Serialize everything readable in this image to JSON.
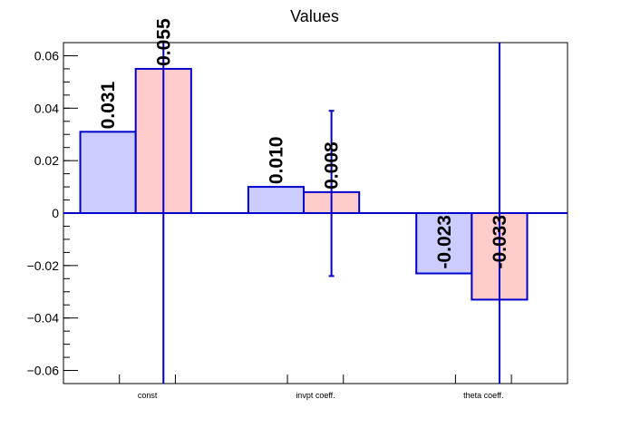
{
  "chart_data": {
    "type": "bar",
    "title": "Values",
    "categories": [
      "const",
      "invpt coeff.",
      "theta coeff."
    ],
    "ylim": [
      -0.065,
      0.065
    ],
    "yticks": [
      -0.06,
      -0.04,
      -0.02,
      0,
      0.02,
      0.04,
      0.06
    ],
    "ytick_labels": [
      "−0.06",
      "−0.04",
      "−0.02",
      "0",
      "0.02",
      "0.04",
      "0.06"
    ],
    "series": [
      {
        "values": [
          0.031,
          0.01,
          -0.023
        ],
        "labels": [
          "0.031",
          "0.010",
          "-0.023"
        ],
        "fill": "#ccccff",
        "stroke": "#0000cc",
        "errors": [
          null,
          null,
          null
        ]
      },
      {
        "values": [
          0.055,
          0.008,
          -0.033
        ],
        "labels": [
          "0.055",
          "0.008",
          "-0.033"
        ],
        "fill": "#ffcccc",
        "stroke": "#0000cc",
        "errors": [
          [
            -0.065,
            0.065
          ],
          [
            -0.024,
            0.039
          ],
          [
            -0.065,
            0.065
          ]
        ]
      }
    ],
    "grid": false,
    "legend": "none",
    "accent_color": "#0000cc"
  }
}
